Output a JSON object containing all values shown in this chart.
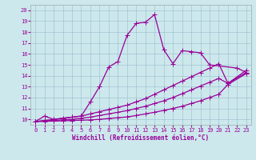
{
  "xlabel": "Windchill (Refroidissement éolien,°C)",
  "xlim": [
    -0.5,
    23.5
  ],
  "ylim": [
    9.5,
    20.5
  ],
  "xticks": [
    0,
    1,
    2,
    3,
    4,
    5,
    6,
    7,
    8,
    9,
    10,
    11,
    12,
    13,
    14,
    15,
    16,
    17,
    18,
    19,
    20,
    21,
    22,
    23
  ],
  "yticks": [
    10,
    11,
    12,
    13,
    14,
    15,
    16,
    17,
    18,
    19,
    20
  ],
  "bg_color": "#cce8ec",
  "line_color": "#990099",
  "grid_color": "#99bbcc",
  "lines": [
    {
      "x": [
        0,
        1,
        2,
        3,
        4,
        5,
        6,
        7,
        8,
        9,
        10,
        11,
        12,
        13,
        14,
        15,
        16,
        17,
        18,
        19,
        22,
        23
      ],
      "y": [
        9.8,
        10.3,
        10.0,
        10.1,
        10.2,
        10.3,
        11.6,
        13.0,
        14.8,
        15.3,
        17.7,
        18.8,
        18.9,
        19.6,
        16.4,
        15.1,
        16.3,
        16.2,
        16.1,
        15.0,
        14.7,
        14.3
      ]
    },
    {
      "x": [
        0,
        1,
        2,
        3,
        4,
        5,
        6,
        7,
        8,
        9,
        10,
        11,
        12,
        13,
        14,
        15,
        16,
        17,
        18,
        19,
        20,
        21,
        23
      ],
      "y": [
        9.8,
        9.9,
        10.0,
        10.1,
        10.2,
        10.3,
        10.5,
        10.7,
        10.9,
        11.1,
        11.3,
        11.6,
        11.9,
        12.3,
        12.7,
        13.1,
        13.5,
        13.9,
        14.3,
        14.7,
        15.1,
        13.3,
        14.5
      ]
    },
    {
      "x": [
        0,
        1,
        2,
        3,
        4,
        5,
        6,
        7,
        8,
        9,
        10,
        11,
        12,
        13,
        14,
        15,
        16,
        17,
        18,
        19,
        20,
        21,
        23
      ],
      "y": [
        9.8,
        9.85,
        9.9,
        9.95,
        10.0,
        10.1,
        10.2,
        10.35,
        10.5,
        10.65,
        10.8,
        11.0,
        11.2,
        11.45,
        11.7,
        12.0,
        12.35,
        12.7,
        13.05,
        13.4,
        13.75,
        13.3,
        14.3
      ]
    },
    {
      "x": [
        0,
        1,
        2,
        3,
        4,
        5,
        6,
        7,
        8,
        9,
        10,
        11,
        12,
        13,
        14,
        15,
        16,
        17,
        18,
        19,
        20,
        21,
        23
      ],
      "y": [
        9.8,
        9.82,
        9.84,
        9.86,
        9.9,
        9.92,
        9.95,
        10.0,
        10.08,
        10.15,
        10.22,
        10.35,
        10.5,
        10.65,
        10.82,
        11.0,
        11.2,
        11.45,
        11.7,
        12.0,
        12.3,
        13.2,
        14.2
      ]
    }
  ],
  "marker": "+",
  "markersize": 4,
  "linewidth": 0.9,
  "tick_fontsize": 5,
  "axis_fontsize": 5.5
}
